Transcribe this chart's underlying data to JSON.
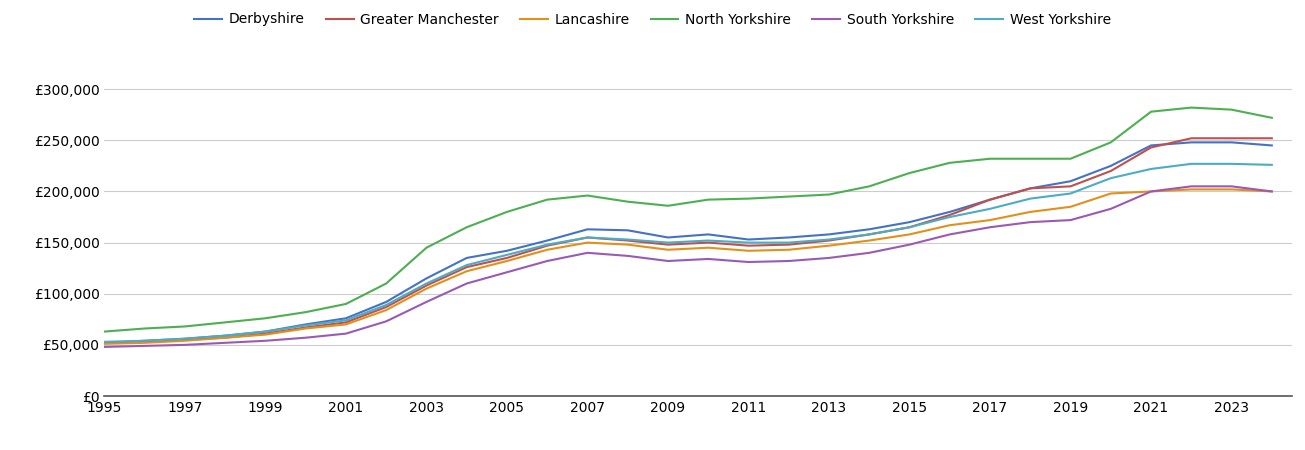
{
  "years": [
    1995,
    1996,
    1997,
    1998,
    1999,
    2000,
    2001,
    2002,
    2003,
    2004,
    2005,
    2006,
    2007,
    2008,
    2009,
    2010,
    2011,
    2012,
    2013,
    2014,
    2015,
    2016,
    2017,
    2018,
    2019,
    2020,
    2021,
    2022,
    2023,
    2024
  ],
  "series": {
    "Derbyshire": [
      52000,
      54000,
      56000,
      59000,
      63000,
      70000,
      76000,
      92000,
      115000,
      135000,
      142000,
      152000,
      163000,
      162000,
      155000,
      158000,
      153000,
      155000,
      158000,
      163000,
      170000,
      180000,
      192000,
      203000,
      210000,
      225000,
      245000,
      248000,
      248000,
      245000
    ],
    "Greater Manchester": [
      52000,
      53000,
      55000,
      57000,
      61000,
      67000,
      72000,
      87000,
      108000,
      126000,
      135000,
      147000,
      155000,
      152000,
      148000,
      150000,
      147000,
      148000,
      152000,
      158000,
      165000,
      177000,
      192000,
      203000,
      205000,
      220000,
      243000,
      252000,
      252000,
      252000
    ],
    "Lancashire": [
      51000,
      52000,
      54000,
      57000,
      60000,
      66000,
      70000,
      84000,
      105000,
      122000,
      132000,
      143000,
      150000,
      148000,
      143000,
      145000,
      142000,
      143000,
      147000,
      152000,
      158000,
      167000,
      172000,
      180000,
      185000,
      198000,
      200000,
      202000,
      202000,
      200000
    ],
    "North Yorkshire": [
      63000,
      66000,
      68000,
      72000,
      76000,
      82000,
      90000,
      110000,
      145000,
      165000,
      180000,
      192000,
      196000,
      190000,
      186000,
      192000,
      193000,
      195000,
      197000,
      205000,
      218000,
      228000,
      232000,
      232000,
      232000,
      248000,
      278000,
      282000,
      280000,
      272000
    ],
    "South Yorkshire": [
      48000,
      49000,
      50000,
      52000,
      54000,
      57000,
      61000,
      73000,
      92000,
      110000,
      121000,
      132000,
      140000,
      137000,
      132000,
      134000,
      131000,
      132000,
      135000,
      140000,
      148000,
      158000,
      165000,
      170000,
      172000,
      183000,
      200000,
      205000,
      205000,
      200000
    ],
    "West Yorkshire": [
      53000,
      54000,
      56000,
      59000,
      63000,
      69000,
      74000,
      89000,
      110000,
      128000,
      138000,
      148000,
      155000,
      153000,
      150000,
      152000,
      150000,
      150000,
      153000,
      158000,
      165000,
      175000,
      183000,
      193000,
      198000,
      213000,
      222000,
      227000,
      227000,
      226000
    ]
  },
  "colors": {
    "Derbyshire": "#4472C4",
    "Greater Manchester": "#C0504D",
    "Lancashire": "#E38F1B",
    "North Yorkshire": "#4CAF50",
    "South Yorkshire": "#9B59B6",
    "West Yorkshire": "#4BACC6"
  },
  "ylim": [
    0,
    330000
  ],
  "yticks": [
    0,
    50000,
    100000,
    150000,
    200000,
    250000,
    300000
  ],
  "xtick_years": [
    1995,
    1997,
    1999,
    2001,
    2003,
    2005,
    2007,
    2009,
    2011,
    2013,
    2015,
    2017,
    2019,
    2021,
    2023
  ],
  "xlim_min": 1995,
  "xlim_max": 2024.5,
  "background_color": "#ffffff",
  "grid_color": "#cccccc",
  "legend_entries": [
    "Derbyshire",
    "Greater Manchester",
    "Lancashire",
    "North Yorkshire",
    "South Yorkshire",
    "West Yorkshire"
  ],
  "linewidth": 1.5,
  "tick_labelsize": 10
}
